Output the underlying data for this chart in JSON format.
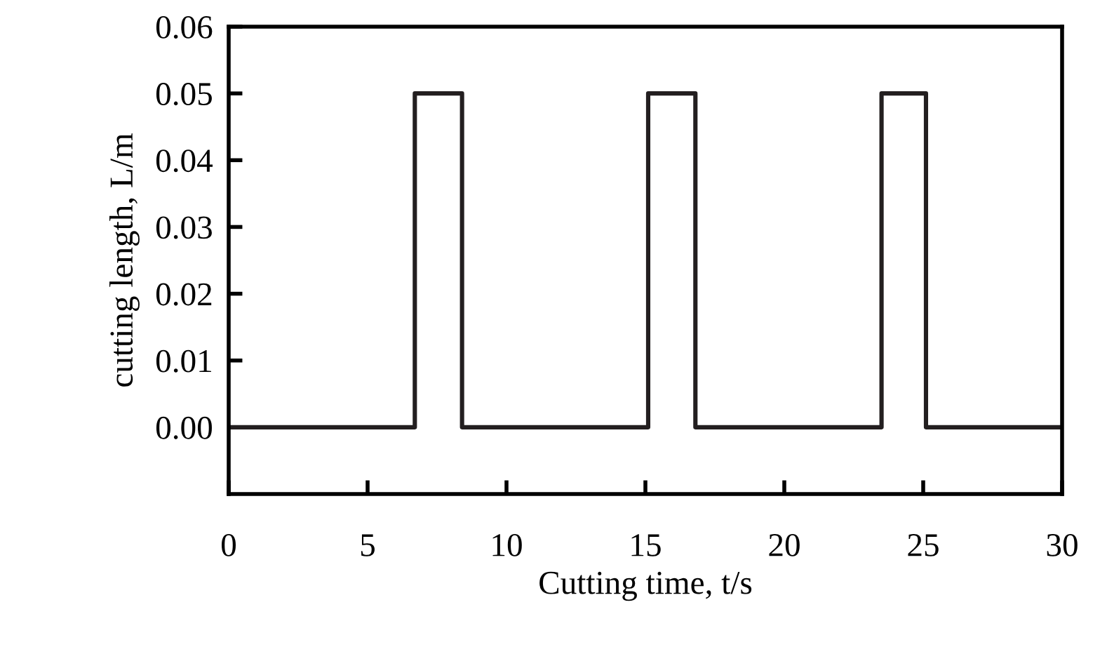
{
  "chart_data": {
    "type": "line",
    "xlabel": "Cutting time, t/s",
    "ylabel": "cutting length, L/m",
    "x": [
      0,
      6.7,
      6.7,
      8.4,
      8.4,
      15.1,
      15.1,
      16.8,
      16.8,
      23.5,
      23.5,
      25.1,
      25.1,
      30
    ],
    "series": [
      {
        "color": "#231f20",
        "values": [
          0,
          0,
          0.05,
          0.05,
          0,
          0,
          0.05,
          0.05,
          0,
          0,
          0.05,
          0.05,
          0,
          0
        ]
      }
    ],
    "xlim": [
      0,
      30
    ],
    "xticks": [
      0,
      5,
      10,
      15,
      20,
      25,
      30
    ],
    "ylim": [
      -0.01,
      0.06
    ],
    "yticks": [
      {
        "value": 0,
        "label": "0.00"
      },
      {
        "value": 0.01,
        "label": "0.01"
      },
      {
        "value": 0.02,
        "label": "0.02"
      },
      {
        "value": 0.03,
        "label": "0.03"
      },
      {
        "value": 0.04,
        "label": "0.04"
      },
      {
        "value": 0.05,
        "label": "0.05"
      },
      {
        "value": 0.06,
        "label": "0.06"
      }
    ],
    "grid": false,
    "legend": false,
    "marker": "none",
    "line_style": "solid"
  }
}
